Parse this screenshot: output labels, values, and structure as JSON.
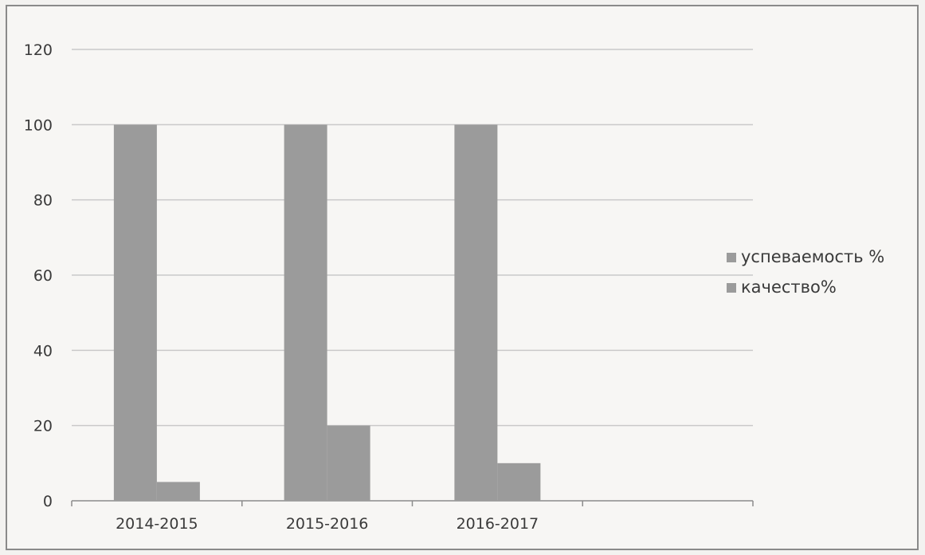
{
  "chart_data": {
    "type": "bar",
    "categories": [
      "2014-2015",
      "2015-2016",
      "2016-2017"
    ],
    "series": [
      {
        "name": "успеваемость %",
        "values": [
          100,
          100,
          100
        ],
        "color": "#9b9b9b"
      },
      {
        "name": "качество%",
        "values": [
          5,
          20,
          10
        ],
        "color": "#9b9b9b"
      }
    ],
    "title": "",
    "xlabel": "",
    "ylabel": "",
    "ylim": [
      0,
      120
    ],
    "yticks": [
      0,
      20,
      40,
      60,
      80,
      100,
      120
    ],
    "grid": true,
    "legend_position": "right"
  }
}
